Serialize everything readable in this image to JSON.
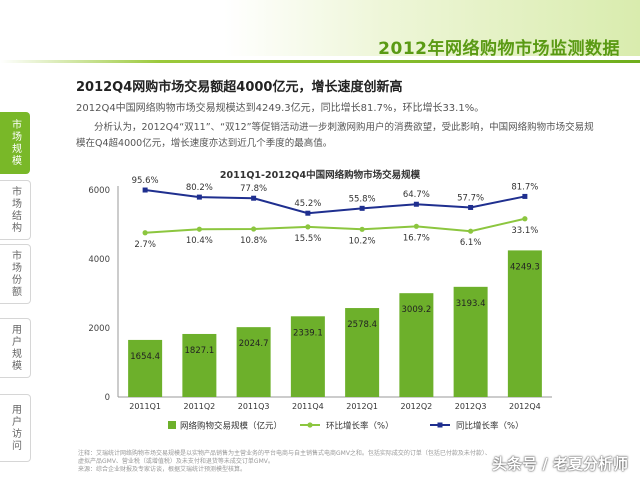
{
  "header": {
    "title": "2012年网络购物市场监测数据"
  },
  "sidebar": {
    "tabs": [
      {
        "label": "市场规模",
        "active": true
      },
      {
        "label": "市场结构",
        "active": false
      },
      {
        "label": "市场份额",
        "active": false
      },
      {
        "label": "用户规模",
        "active": false
      },
      {
        "label": "用户访问",
        "active": false
      }
    ]
  },
  "content": {
    "headline": "2012Q4网购市场交易额超4000亿元，增长速度创新高",
    "subhead": "2012Q4中国网络购物市场交易规模达到4249.3亿元，同比增长81.7%，环比增长33.1%。",
    "description": "分析认为，2012Q4“双11”、“双12”等促销活动进一步刺激网购用户的消费欲望，受此影响，中国网络购物市场交易规模在Q4超4000亿元，增长速度亦达到近几个季度的最高值。"
  },
  "chart_data": {
    "type": "bar",
    "title": "2011Q1-2012Q4中国网络购物市场交易规模",
    "categories": [
      "2011Q1",
      "2011Q2",
      "2011Q3",
      "2011Q4",
      "2012Q1",
      "2012Q2",
      "2012Q3",
      "2012Q4"
    ],
    "bar_series": {
      "name": "网络购物交易规模（亿元）",
      "values": [
        1654.4,
        1827.1,
        2024.7,
        2339.1,
        2578.4,
        3009.2,
        3193.4,
        4249.3
      ],
      "labels": [
        "1654.4",
        "1827.1",
        "2024.7",
        "2339.1",
        "2578.4",
        "3009.2",
        "3193.4",
        "4249.3"
      ],
      "color": "#6db02b"
    },
    "line_series": [
      {
        "name": "环比增长率（%）",
        "values": [
          2.7,
          10.4,
          10.8,
          15.5,
          10.2,
          16.7,
          6.1,
          33.1
        ],
        "labels": [
          "2.7%",
          "10.4%",
          "10.8%",
          "15.5%",
          "10.2%",
          "16.7%",
          "6.1%",
          "33.1%"
        ],
        "color": "#8cc63f"
      },
      {
        "name": "同比增长率（%）",
        "values": [
          95.6,
          80.2,
          77.8,
          45.2,
          55.8,
          64.7,
          57.7,
          81.7
        ],
        "labels": [
          "95.6%",
          "80.2%",
          "77.8%",
          "45.2%",
          "55.8%",
          "64.7%",
          "57.7%",
          "81.7%"
        ],
        "color": "#1f2f8f"
      }
    ],
    "yaxis": {
      "ticks": [
        0,
        2000,
        4000,
        6000
      ],
      "ylim": [
        0,
        6000
      ]
    },
    "legend": "bottom",
    "grid": false
  },
  "notes": {
    "line1": "注释：艾瑞统计网络购物市场交易规模是以实物产品销售为主营业务的平台电商与自主销售式电商GMV之和。包括实际成交的订单（包括已付款及未付款）、",
    "line2": "虚拟产品GMV、营业税（或增值税）及未支付和退货等未成交订单GMV。",
    "line3": "来源：综合企业财报及专家访谈，根据艾瑞统计预测模型核算。"
  },
  "watermark": "头条号 / 老夏分析师"
}
